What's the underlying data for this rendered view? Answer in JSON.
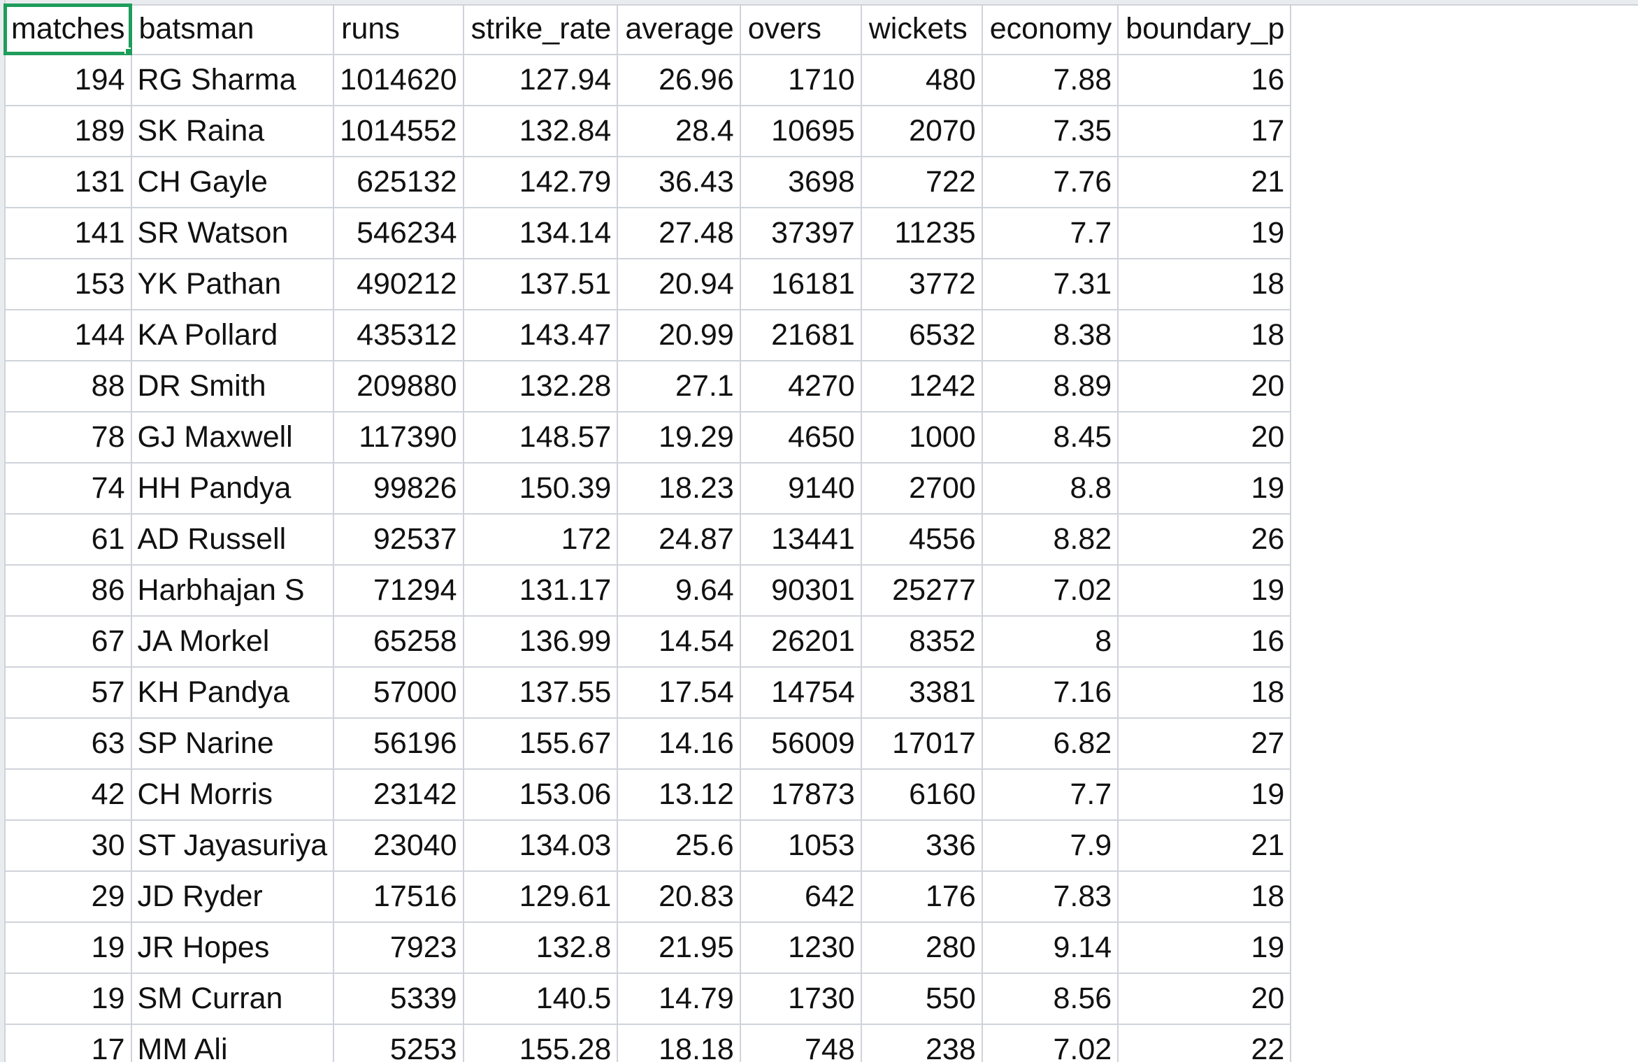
{
  "spreadsheet": {
    "selected_cell": "A1",
    "accent_color": "#1e9d5b",
    "gridline_color": "#cfd3da",
    "columns": [
      "matches",
      "batsman",
      "runs",
      "strike_rate",
      "average",
      "overs",
      "wickets",
      "economy",
      "boundary_p"
    ],
    "rows": [
      [
        "194",
        "RG Sharma",
        "1014620",
        "127.94",
        "26.96",
        "1710",
        "480",
        "7.88",
        "16"
      ],
      [
        "189",
        "SK Raina",
        "1014552",
        "132.84",
        "28.4",
        "10695",
        "2070",
        "7.35",
        "17"
      ],
      [
        "131",
        "CH Gayle",
        "625132",
        "142.79",
        "36.43",
        "3698",
        "722",
        "7.76",
        "21"
      ],
      [
        "141",
        "SR Watson",
        "546234",
        "134.14",
        "27.48",
        "37397",
        "11235",
        "7.7",
        "19"
      ],
      [
        "153",
        "YK Pathan",
        "490212",
        "137.51",
        "20.94",
        "16181",
        "3772",
        "7.31",
        "18"
      ],
      [
        "144",
        "KA Pollard",
        "435312",
        "143.47",
        "20.99",
        "21681",
        "6532",
        "8.38",
        "18"
      ],
      [
        "88",
        "DR Smith",
        "209880",
        "132.28",
        "27.1",
        "4270",
        "1242",
        "8.89",
        "20"
      ],
      [
        "78",
        "GJ Maxwell",
        "117390",
        "148.57",
        "19.29",
        "4650",
        "1000",
        "8.45",
        "20"
      ],
      [
        "74",
        "HH Pandya",
        "99826",
        "150.39",
        "18.23",
        "9140",
        "2700",
        "8.8",
        "19"
      ],
      [
        "61",
        "AD Russell",
        "92537",
        "172",
        "24.87",
        "13441",
        "4556",
        "8.82",
        "26"
      ],
      [
        "86",
        "Harbhajan S",
        "71294",
        "131.17",
        "9.64",
        "90301",
        "25277",
        "7.02",
        "19"
      ],
      [
        "67",
        "JA Morkel",
        "65258",
        "136.99",
        "14.54",
        "26201",
        "8352",
        "8",
        "16"
      ],
      [
        "57",
        "KH Pandya",
        "57000",
        "137.55",
        "17.54",
        "14754",
        "3381",
        "7.16",
        "18"
      ],
      [
        "63",
        "SP Narine",
        "56196",
        "155.67",
        "14.16",
        "56009",
        "17017",
        "6.82",
        "27"
      ],
      [
        "42",
        "CH Morris",
        "23142",
        "153.06",
        "13.12",
        "17873",
        "6160",
        "7.7",
        "19"
      ],
      [
        "30",
        "ST Jayasuriya",
        "23040",
        "134.03",
        "25.6",
        "1053",
        "336",
        "7.9",
        "21"
      ],
      [
        "29",
        "JD Ryder",
        "17516",
        "129.61",
        "20.83",
        "642",
        "176",
        "7.83",
        "18"
      ],
      [
        "19",
        "JR Hopes",
        "7923",
        "132.8",
        "21.95",
        "1230",
        "280",
        "9.14",
        "19"
      ],
      [
        "19",
        "SM Curran",
        "5339",
        "140.5",
        "14.79",
        "1730",
        "550",
        "8.56",
        "20"
      ],
      [
        "17",
        "MM Ali",
        "5253",
        "155.28",
        "18.18",
        "748",
        "238",
        "7.02",
        "22"
      ]
    ]
  }
}
